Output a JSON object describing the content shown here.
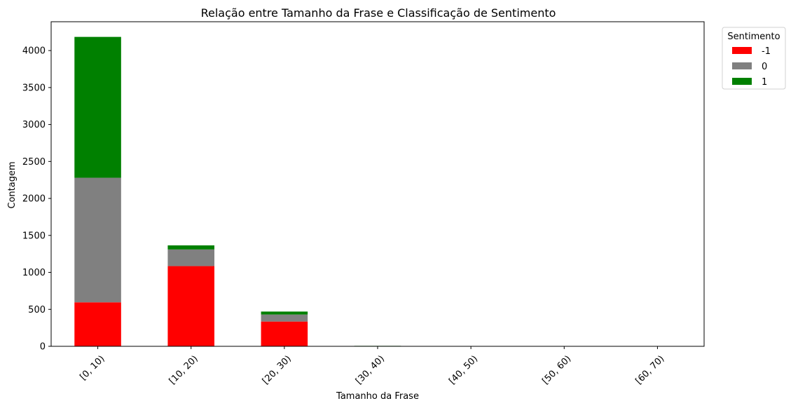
{
  "chart_data": {
    "type": "bar",
    "stacked": true,
    "title": "Relação entre Tamanho da Frase e Classificação de Sentimento",
    "xlabel": "Tamanho da Frase",
    "ylabel": "Contagem",
    "categories": [
      "[0, 10)",
      "[10, 20)",
      "[20, 30)",
      "[30, 40)",
      "[40, 50)",
      "[50, 60)",
      "[60, 70)"
    ],
    "series": [
      {
        "name": "-1",
        "color": "#ff0000",
        "values": [
          595,
          1085,
          335,
          3,
          0,
          0,
          0
        ]
      },
      {
        "name": "0",
        "color": "#808080",
        "values": [
          1685,
          225,
          95,
          2,
          0,
          0,
          0
        ]
      },
      {
        "name": "1",
        "color": "#008000",
        "values": [
          1905,
          55,
          40,
          1,
          0,
          0,
          0
        ]
      }
    ],
    "ylim": [
      0,
      4390
    ],
    "yticks": [
      0,
      500,
      1000,
      1500,
      2000,
      2500,
      3000,
      3500,
      4000
    ],
    "legend": {
      "title": "Sentimento",
      "placement": "outside upper right"
    },
    "grid": false,
    "xtick_rotation": 45
  }
}
